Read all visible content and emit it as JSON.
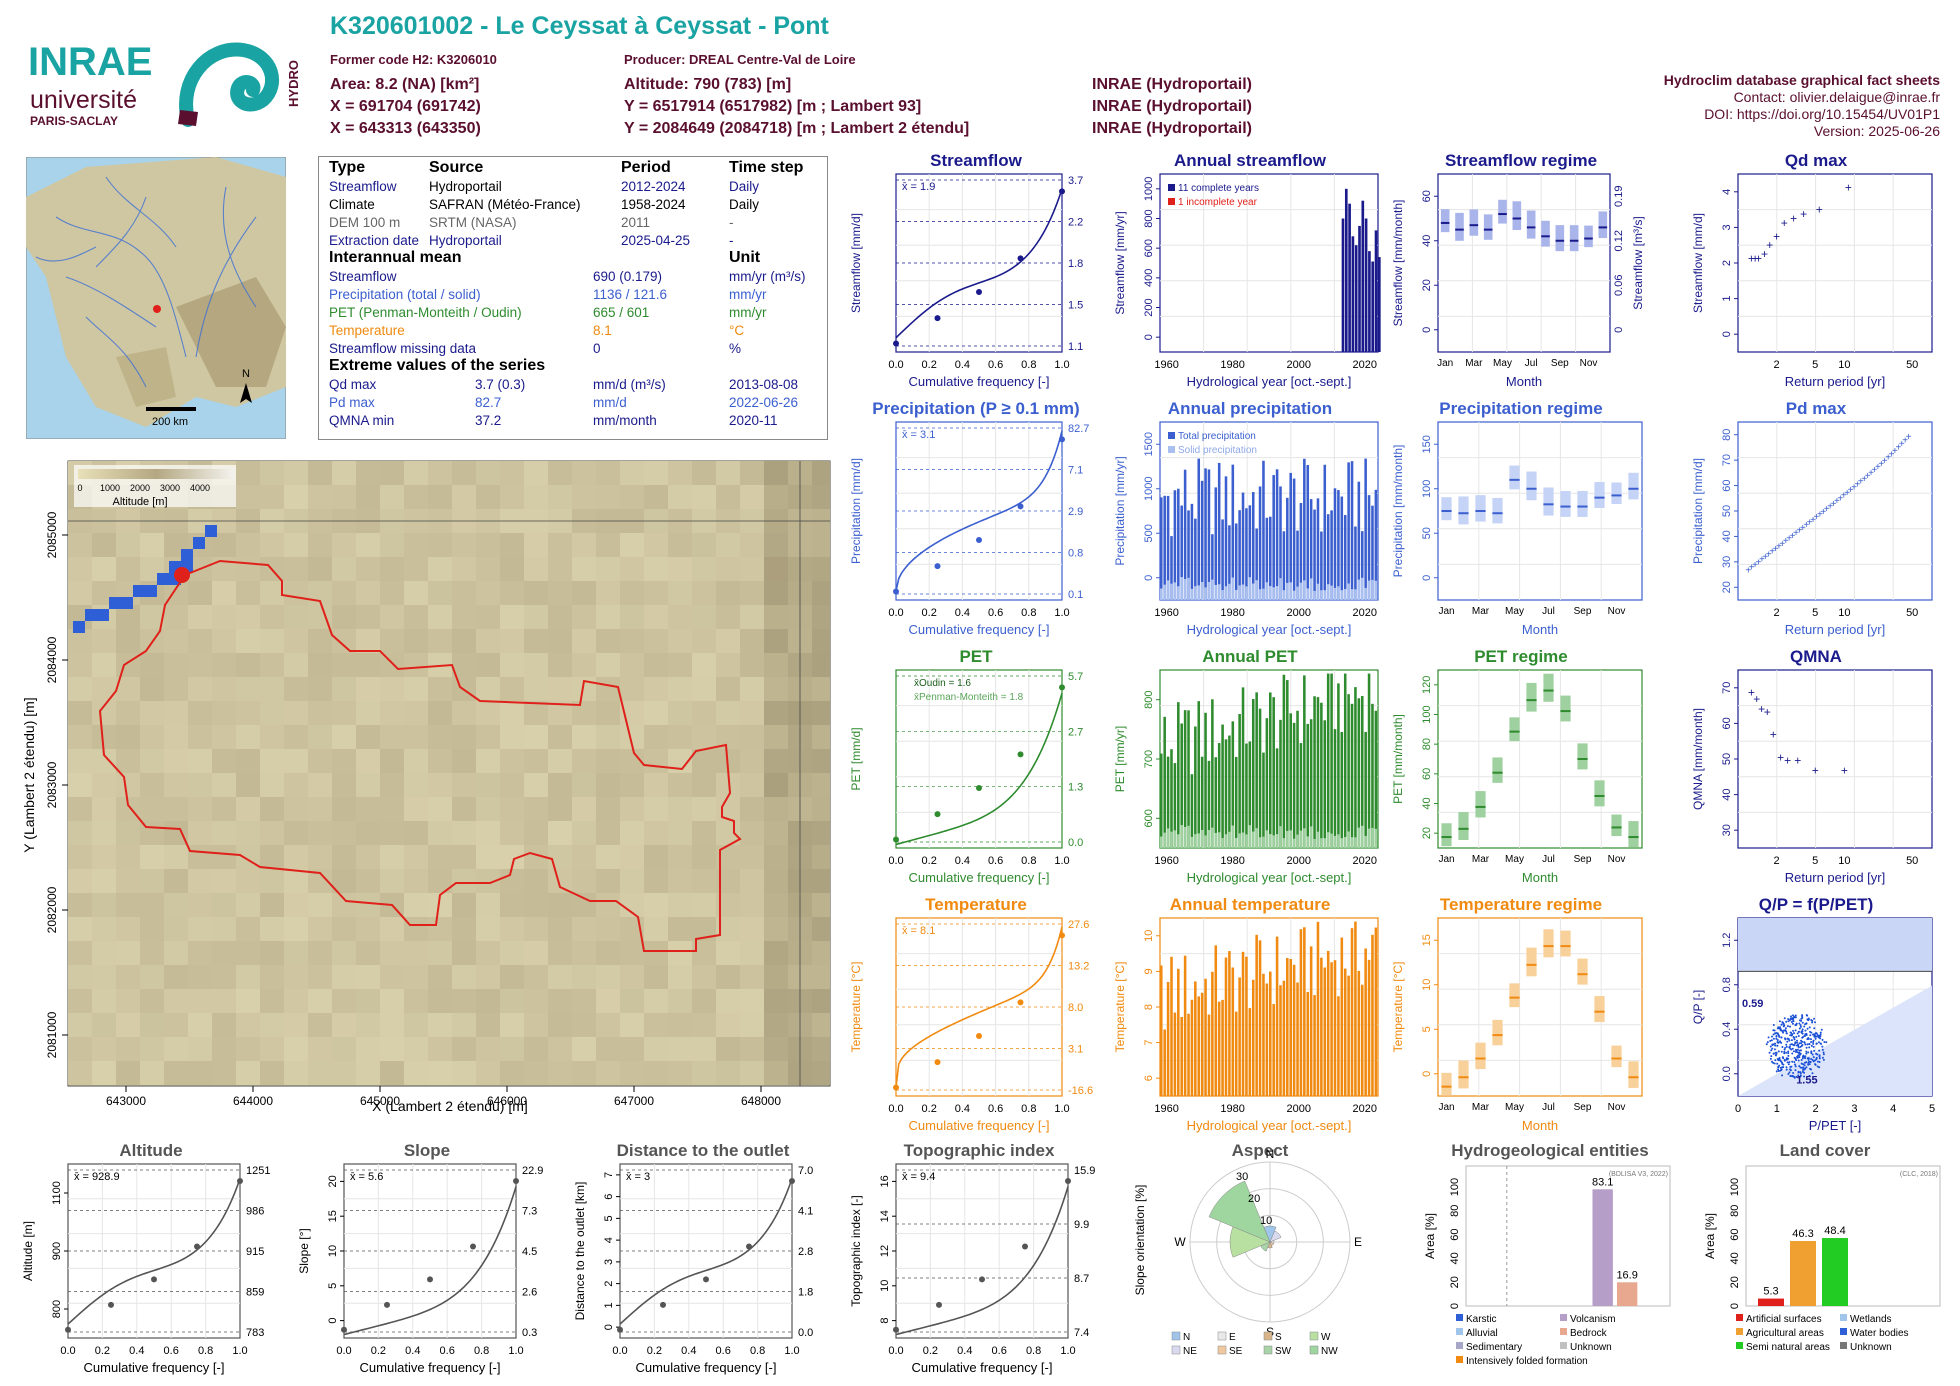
{
  "header": {
    "title": "K320601002 - Le Ceyssat à Ceyssat - Pont",
    "former_code": "Former code H2: K3206010",
    "producer": "Producer: DREAL Centre-Val de Loire",
    "area": "Area: 8.2 (NA) [km²]",
    "altitude": "Altitude: 790 (783) [m]",
    "x93": "X = 691704 (691742)",
    "y93": "Y = 6517914 (6517982) [m ; Lambert 93]",
    "x2": "X = 643313 (643350)",
    "y2": "Y = 2084649 (2084718) [m ; Lambert 2 étendu]",
    "src1": "INRAE (Hydroportail)",
    "src2": "INRAE (Hydroportail)",
    "src3": "INRAE (Hydroportail)",
    "db_title": "Hydroclim database graphical fact sheets",
    "contact": "Contact: olivier.delaigue@inrae.fr",
    "doi": "DOI: https://doi.org/10.15454/UV01P1",
    "version": "Version: 2025-06-26",
    "logo_inrae": "INRAE",
    "logo_univ": "université",
    "logo_paris": "PARIS-SACLAY",
    "logo_hydro": "HYDRO"
  },
  "colors": {
    "teal": "#1aa3a3",
    "maroon": "#5a0f2e",
    "navy": "#1a1a8c",
    "blue": "#3b5fcf",
    "green": "#2e8b2e",
    "orange": "#f08a10",
    "red": "#e0201a"
  },
  "info": {
    "h_type": "Type",
    "h_source": "Source",
    "h_period": "Period",
    "h_step": "Time step",
    "r1": [
      "Streamflow",
      "Hydroportail",
      "2012-2024",
      "Daily"
    ],
    "r2": [
      "Climate",
      "SAFRAN (Météo-France)",
      "1958-2024",
      "Daily"
    ],
    "r3": [
      "DEM 100 m",
      "SRTM (NASA)",
      "2011",
      "-"
    ],
    "r4": [
      "Extraction date",
      "Hydroportail",
      "2025-04-25",
      "-"
    ],
    "h_mean": "Interannual mean",
    "h_unit": "Unit",
    "m1": [
      "Streamflow",
      "690 (0.179)",
      "mm/yr (m³/s)"
    ],
    "m2": [
      "Precipitation (total / solid)",
      "1136 / 121.6",
      "mm/yr"
    ],
    "m3": [
      "PET (Penman-Monteith / Oudin)",
      "665 / 601",
      "mm/yr"
    ],
    "m4": [
      "Temperature",
      "8.1",
      "°C"
    ],
    "m5": [
      "Streamflow missing data",
      "0",
      "%"
    ],
    "h_ext": "Extreme values of the series",
    "e1": [
      "Qd max",
      "3.7 (0.3)",
      "mm/d (m³/s)",
      "2013-08-08"
    ],
    "e2": [
      "Pd max",
      "82.7",
      "mm/d",
      "2022-06-26"
    ],
    "e3": [
      "QMNA min",
      "37.2",
      "mm/month",
      "2020-11"
    ]
  },
  "minimap": {
    "scale": "200 km",
    "north": "N"
  },
  "map": {
    "xlabel": "X (Lambert 2 étendu) [m]",
    "ylabel": "Y (Lambert 2 étendu) [m]",
    "xticks": [
      "643000",
      "644000",
      "645000",
      "646000",
      "647000",
      "648000"
    ],
    "yticks": [
      "2081000",
      "2082000",
      "2083000",
      "2084000",
      "2085000"
    ],
    "legend_title": "Altitude [m]",
    "legend_ticks": [
      "0",
      "1000",
      "2000",
      "3000",
      "4000"
    ]
  },
  "chart_data": [
    {
      "id": "streamflow",
      "type": "line",
      "title": "Streamflow",
      "xlabel": "Cumulative frequency [-]",
      "ylabel": "Streamflow [mm/d]",
      "mean": "x̄ = 1.9",
      "right_ticks": [
        "3.7",
        "2.2",
        "1.8",
        "1.5",
        "1.1"
      ]
    },
    {
      "id": "annual_streamflow",
      "type": "bar",
      "title": "Annual streamflow",
      "xlabel": "Hydrological year [oct.-sept.]",
      "ylabel": "Streamflow [mm/yr]",
      "legend": [
        "11 complete years",
        "1 incomplete year"
      ],
      "x": [
        2013,
        2014,
        2015,
        2016,
        2017,
        2018,
        2019,
        2020,
        2021,
        2022,
        2023,
        2024
      ],
      "values": [
        900,
        1100,
        1000,
        780,
        720,
        850,
        1020,
        900,
        680,
        610,
        820,
        640
      ],
      "ylim": [
        0,
        1200
      ],
      "yticks": [
        "0",
        "200",
        "400",
        "600",
        "800",
        "1000"
      ]
    },
    {
      "id": "streamflow_regime",
      "type": "box",
      "title": "Streamflow regime",
      "xlabel": "Month",
      "ylabel": "Streamflow [mm/month]",
      "ylabel2": "Streamflow [m³/s]",
      "months": [
        "Jan",
        "Mar",
        "May",
        "Jul",
        "Sep",
        "Nov"
      ],
      "medians": [
        58,
        55,
        57,
        55,
        62,
        60,
        56,
        52,
        50,
        50,
        51,
        56
      ],
      "yticks": [
        "0",
        "20",
        "40",
        "60"
      ],
      "yticks2": [
        "0",
        "0.06",
        "0.12",
        "0.19"
      ]
    },
    {
      "id": "qd_max",
      "type": "scatter",
      "title": "Qd max",
      "xlabel": "Return period [yr]",
      "ylabel": "Streamflow [mm/d]",
      "x": [
        1.1,
        1.2,
        1.3,
        1.5,
        1.7,
        2,
        2.4,
        3,
        3.8,
        5.5,
        11
      ],
      "values": [
        2.1,
        2.1,
        2.1,
        2.2,
        2.4,
        2.6,
        2.9,
        3.0,
        3.1,
        3.2,
        3.7
      ],
      "ylim": [
        0,
        4
      ],
      "xticks": [
        "2",
        "5",
        "10",
        "50"
      ],
      "yticks": [
        "0",
        "1",
        "2",
        "3",
        "4"
      ]
    },
    {
      "id": "precipitation",
      "type": "line",
      "title": "Precipitation (P ≥ 0.1 mm)",
      "xlabel": "Cumulative frequency [-]",
      "ylabel": "Precipitation [mm/d]",
      "mean": "x̄ = 3.1",
      "right_ticks": [
        "82.7",
        "7.1",
        "2.9",
        "0.8",
        "0.1"
      ]
    },
    {
      "id": "annual_precipitation",
      "type": "bar",
      "title": "Annual precipitation",
      "xlabel": "Hydrological year [oct.-sept.]",
      "ylabel": "Precipitation [mm/yr]",
      "legend": [
        "Total precipitation",
        "Solid precipitation"
      ],
      "ylim": [
        0,
        1600
      ],
      "yticks": [
        "0",
        "500",
        "1000",
        "1500"
      ]
    },
    {
      "id": "precipitation_regime",
      "type": "box",
      "title": "Precipitation regime",
      "xlabel": "Month",
      "ylabel": "Precipitation [mm/month]",
      "months": [
        "Jan",
        "Mar",
        "May",
        "Jul",
        "Sep",
        "Nov"
      ],
      "medians": [
        80,
        78,
        80,
        78,
        108,
        100,
        86,
        84,
        84,
        92,
        94,
        100
      ],
      "yticks": [
        "0",
        "50",
        "100",
        "150"
      ]
    },
    {
      "id": "pd_max",
      "type": "scatter",
      "title": "Pd max",
      "xlabel": "Return period [yr]",
      "ylabel": "Precipitation [mm/d]",
      "ylim": [
        0,
        90
      ],
      "xticks": [
        "2",
        "5",
        "10",
        "50"
      ],
      "yticks": [
        "20",
        "30",
        "40",
        "50",
        "60",
        "70",
        "80"
      ]
    },
    {
      "id": "pet",
      "type": "line",
      "title": "PET",
      "xlabel": "Cumulative frequency [-]",
      "ylabel": "PET [mm/d]",
      "mean1": "x̄Oudin = 1.6",
      "mean2": "x̄Penman-Monteith = 1.8",
      "right_ticks": [
        "5.7",
        "2.7",
        "1.3",
        "0.0"
      ]
    },
    {
      "id": "annual_pet",
      "type": "bar",
      "title": "Annual PET",
      "xlabel": "Hydrological year [oct.-sept.]",
      "ylabel": "PET [mm/yr]",
      "ylim": [
        500,
        900
      ],
      "yticks": [
        "600",
        "700",
        "800"
      ]
    },
    {
      "id": "pet_regime",
      "type": "box",
      "title": "PET regime",
      "xlabel": "Month",
      "ylabel": "PET [mm/month]",
      "months": [
        "Jan",
        "Mar",
        "May",
        "Jul",
        "Sep",
        "Nov"
      ],
      "medians": [
        8,
        14,
        30,
        55,
        85,
        108,
        115,
        100,
        65,
        38,
        15,
        8
      ],
      "yticks": [
        "20",
        "40",
        "60",
        "80",
        "100",
        "120"
      ]
    },
    {
      "id": "qmna",
      "type": "scatter",
      "title": "QMNA",
      "xlabel": "Return period [yr]",
      "ylabel": "QMNA [mm/month]",
      "x": [
        1.1,
        1.25,
        1.4,
        1.6,
        1.85,
        2.2,
        2.6,
        3.3,
        5,
        10
      ],
      "values": [
        68,
        66,
        63,
        62,
        55,
        48,
        47,
        47,
        44,
        44
      ],
      "ylim": [
        20,
        75
      ],
      "xticks": [
        "2",
        "5",
        "10",
        "50"
      ],
      "yticks": [
        "30",
        "40",
        "50",
        "60",
        "70"
      ]
    },
    {
      "id": "temperature",
      "type": "line",
      "title": "Temperature",
      "xlabel": "Cumulative frequency [-]",
      "ylabel": "Temperature [°C]",
      "mean": "x̄ = 8.1",
      "right_ticks": [
        "27.6",
        "13.2",
        "8.0",
        "3.1",
        "-16.6"
      ]
    },
    {
      "id": "annual_temperature",
      "type": "bar",
      "title": "Annual temperature",
      "xlabel": "Hydrological year [oct.-sept.]",
      "ylabel": "Temperature [°C]",
      "ylim": [
        6,
        10.5
      ],
      "yticks": [
        "6",
        "7",
        "8",
        "9",
        "10"
      ]
    },
    {
      "id": "temperature_regime",
      "type": "box",
      "title": "Temperature regime",
      "xlabel": "Month",
      "ylabel": "Temperature [°C]",
      "months": [
        "Jan",
        "Mar",
        "May",
        "Jul",
        "Sep",
        "Nov"
      ],
      "medians": [
        1,
        2,
        4,
        6.5,
        10.5,
        14,
        16,
        16,
        13,
        9,
        4,
        2
      ],
      "yticks": [
        "0",
        "5",
        "10",
        "15"
      ]
    },
    {
      "id": "qp_ppet",
      "type": "scatter",
      "title": "Q/P = f(P/PET)",
      "xlabel": "P/PET [-]",
      "ylabel": "Q/P [-]",
      "label1": "0.59",
      "label2": "1.55",
      "xticks": [
        "0",
        "1",
        "2",
        "3",
        "4",
        "5"
      ],
      "yticks": [
        "0.0",
        "0.4",
        "0.8",
        "1.2"
      ]
    },
    {
      "id": "altitude",
      "type": "line",
      "title": "Altitude",
      "xlabel": "Cumulative frequency [-]",
      "ylabel": "Altitude [m]",
      "mean": "x̄ = 928.9",
      "right_ticks": [
        "1251",
        "986",
        "915",
        "859",
        "783"
      ],
      "yticks": [
        "800",
        "900",
        "1100"
      ]
    },
    {
      "id": "slope",
      "type": "line",
      "title": "Slope",
      "xlabel": "Cumulative frequency [-]",
      "ylabel": "Slope [°]",
      "mean": "x̄ = 5.6",
      "right_ticks": [
        "22.9",
        "7.3",
        "4.5",
        "2.6",
        "0.3"
      ],
      "yticks": [
        "0",
        "5",
        "10",
        "15",
        "20"
      ]
    },
    {
      "id": "distance",
      "type": "line",
      "title": "Distance to the outlet",
      "xlabel": "Cumulative frequency [-]",
      "ylabel": "Distance to the outlet [km]",
      "mean": "x̄ = 3",
      "right_ticks": [
        "7.0",
        "4.1",
        "2.8",
        "1.8",
        "0.0"
      ],
      "yticks": [
        "0",
        "1",
        "2",
        "3",
        "4",
        "5",
        "6",
        "7"
      ]
    },
    {
      "id": "topo",
      "type": "line",
      "title": "Topographic index",
      "xlabel": "Cumulative frequency [-]",
      "ylabel": "Topographic index [-]",
      "mean": "x̄ = 9.4",
      "right_ticks": [
        "15.9",
        "9.9",
        "8.7",
        "7.4"
      ],
      "yticks": [
        "8",
        "10",
        "12",
        "14",
        "16"
      ]
    },
    {
      "id": "aspect",
      "type": "pie",
      "title": "Aspect",
      "ylabel": "Slope orientation [%]",
      "dirs": [
        "N",
        "E",
        "S",
        "W"
      ],
      "rings": [
        "10",
        "20",
        "30"
      ],
      "legend": [
        "N",
        "E",
        "S",
        "W",
        "NE",
        "SE",
        "SW",
        "NW"
      ],
      "values": {
        "N": 8,
        "NE": 6,
        "E": 2,
        "SE": 2,
        "S": 3,
        "SW": 5,
        "W": 20,
        "NW": 33
      }
    },
    {
      "id": "hydrogeo",
      "type": "bar",
      "title": "Hydrogeological entities",
      "ylabel": "Area [%]",
      "note": "(BDLISA V3, 2022)",
      "values": [
        83.1,
        16.9
      ],
      "labels": [
        "83.1",
        "16.9"
      ],
      "legend": [
        "Karstic",
        "Volcanism",
        "Alluvial",
        "Bedrock",
        "Sedimentary",
        "Unknown",
        "Intensively folded formation"
      ],
      "yticks": [
        "0",
        "20",
        "40",
        "60",
        "80",
        "100"
      ]
    },
    {
      "id": "landcover",
      "type": "bar",
      "title": "Land cover",
      "ylabel": "Area [%]",
      "note": "(CLC, 2018)",
      "values": [
        5.3,
        46.3,
        48.4
      ],
      "labels": [
        "5.3",
        "46.3",
        "48.4"
      ],
      "legend": [
        "Artificial surfaces",
        "Wetlands",
        "Agricultural areas",
        "Water bodies",
        "Semi natural areas",
        "Unknown"
      ],
      "yticks": [
        "0",
        "20",
        "40",
        "60",
        "80",
        "100"
      ]
    }
  ]
}
